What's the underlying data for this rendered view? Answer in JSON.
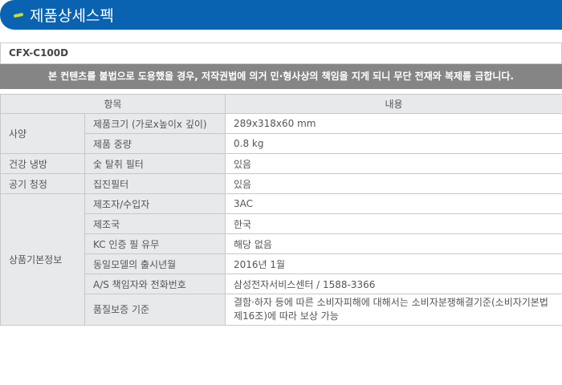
{
  "header": {
    "title": "제품상세스펙"
  },
  "model": "CFX-C100D",
  "notice": "본 컨텐츠를 불법으로 도용했을 경우,  저작권법에 의거 민·형사상의 책임을 지게 되니 무단 전재와 복제를 금합니다.",
  "table": {
    "headers": [
      "항목",
      "내용"
    ],
    "groups": [
      {
        "label": "사양",
        "rows": [
          {
            "item": "제품크기 (가로x높이x 깊이)",
            "value": "289x318x60 mm"
          },
          {
            "item": "제품 중량",
            "value": "0.8 kg"
          }
        ]
      },
      {
        "label": "건강 냉방",
        "rows": [
          {
            "item": "숯 탈취 필터",
            "value": "있음"
          }
        ]
      },
      {
        "label": "공기 청정",
        "rows": [
          {
            "item": "집진필터",
            "value": "있음"
          }
        ]
      },
      {
        "label": "상품기본정보",
        "rows": [
          {
            "item": "제조자/수입자",
            "value": "3AC"
          },
          {
            "item": "제조국",
            "value": "한국"
          },
          {
            "item": "KC 인증 필 유무",
            "value": "해당 없음"
          },
          {
            "item": "동일모델의 출시년월",
            "value": "2016년 1월"
          },
          {
            "item": "A/S 책임자와 전화번호",
            "value": "삼성전자서비스센터 / 1588-3366"
          },
          {
            "item": "품질보증 기준",
            "value": "결함·하자 등에 따른 소비자피해에 대해서는 소비자분쟁해결기준(소비자기본법 제16조)에 따라 보상 가능"
          }
        ]
      }
    ]
  }
}
